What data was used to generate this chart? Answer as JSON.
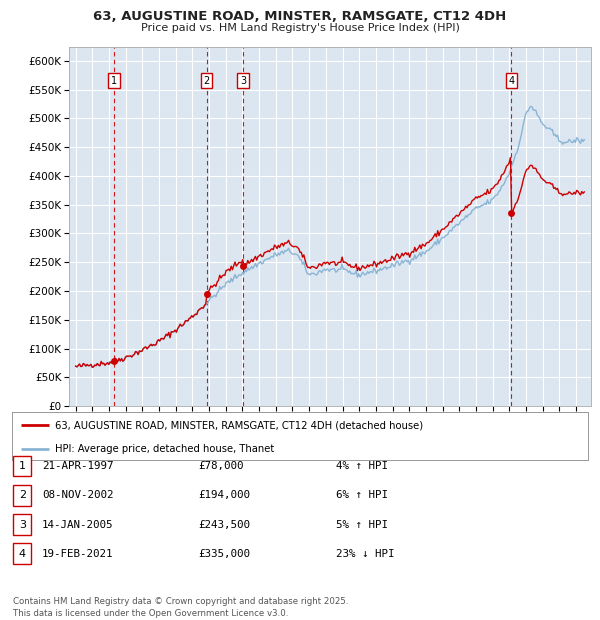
{
  "title": "63, AUGUSTINE ROAD, MINSTER, RAMSGATE, CT12 4DH",
  "subtitle": "Price paid vs. HM Land Registry's House Price Index (HPI)",
  "background_color": "#ffffff",
  "plot_bg_color": "#dce6f1",
  "hpi_line_color": "#8ab4d4",
  "price_line_color": "#cc0000",
  "sale_marker_color": "#cc0000",
  "vline_color": "#cc0000",
  "grid_color": "#ffffff",
  "yticks": [
    0,
    50000,
    100000,
    150000,
    200000,
    250000,
    300000,
    350000,
    400000,
    450000,
    500000,
    550000,
    600000
  ],
  "ylim": [
    0,
    625000
  ],
  "xlim_start": 1994.6,
  "xlim_end": 2025.9,
  "sales": [
    {
      "num": 1,
      "date": 1997.31,
      "price": 78000
    },
    {
      "num": 2,
      "date": 2002.85,
      "price": 194000
    },
    {
      "num": 3,
      "date": 2005.04,
      "price": 243500
    },
    {
      "num": 4,
      "date": 2021.13,
      "price": 335000
    }
  ],
  "sale_table": [
    {
      "num": 1,
      "date_str": "21-APR-1997",
      "price_str": "£78,000",
      "pct_str": "4% ↑ HPI"
    },
    {
      "num": 2,
      "date_str": "08-NOV-2002",
      "price_str": "£194,000",
      "pct_str": "6% ↑ HPI"
    },
    {
      "num": 3,
      "date_str": "14-JAN-2005",
      "price_str": "£243,500",
      "pct_str": "5% ↑ HPI"
    },
    {
      "num": 4,
      "date_str": "19-FEB-2021",
      "price_str": "£335,000",
      "pct_str": "23% ↓ HPI"
    }
  ],
  "legend_property_label": "63, AUGUSTINE ROAD, MINSTER, RAMSGATE, CT12 4DH (detached house)",
  "legend_hpi_label": "HPI: Average price, detached house, Thanet",
  "footer": "Contains HM Land Registry data © Crown copyright and database right 2025.\nThis data is licensed under the Open Government Licence v3.0.",
  "hpi_key_years": [
    1995.0,
    1996.0,
    1997.0,
    1998.0,
    1999.0,
    2000.0,
    2001.0,
    2002.0,
    2003.0,
    2004.0,
    2005.0,
    2006.0,
    2007.0,
    2007.8,
    2008.3,
    2009.0,
    2009.5,
    2010.0,
    2010.5,
    2011.0,
    2011.5,
    2012.0,
    2012.5,
    2013.0,
    2014.0,
    2015.0,
    2016.0,
    2017.0,
    2018.0,
    2019.0,
    2020.0,
    2020.5,
    2021.0,
    2021.5,
    2021.8,
    2022.0,
    2022.3,
    2022.6,
    2023.0,
    2023.5,
    2024.0,
    2024.5,
    2025.0,
    2025.5
  ],
  "hpi_key_vals": [
    68000,
    72000,
    75000,
    84000,
    97000,
    112000,
    132000,
    155000,
    183000,
    212000,
    232000,
    248000,
    263000,
    270000,
    262000,
    228000,
    232000,
    238000,
    236000,
    237000,
    232000,
    228000,
    232000,
    235000,
    244000,
    254000,
    268000,
    292000,
    318000,
    343000,
    358000,
    378000,
    405000,
    448000,
    480000,
    510000,
    522000,
    510000,
    490000,
    478000,
    462000,
    458000,
    462000,
    460000
  ]
}
